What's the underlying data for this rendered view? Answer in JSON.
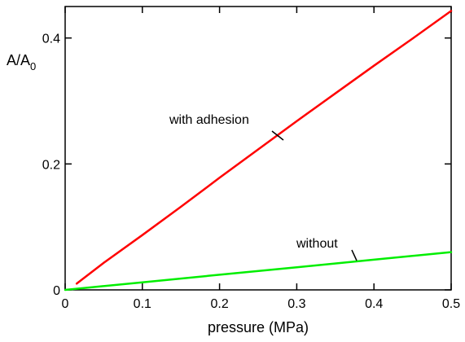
{
  "chart_data": {
    "type": "line",
    "title": "",
    "xlabel": "pressure (MPa)",
    "ylabel_main": "A/A",
    "ylabel_sub": "0",
    "xlim": [
      0,
      0.5
    ],
    "ylim": [
      0,
      0.45
    ],
    "xticks": [
      0,
      0.1,
      0.2,
      0.3,
      0.4,
      0.5
    ],
    "xtick_labels": [
      "0",
      "0.1",
      "0.2",
      "0.3",
      "0.4",
      "0.5"
    ],
    "yticks": [
      0,
      0.2,
      0.4
    ],
    "ytick_labels": [
      "0",
      "0.2",
      "0.4"
    ],
    "grid": false,
    "series": [
      {
        "name": "with adhesion",
        "color": "#ff0000",
        "x": [
          0.015,
          0.05,
          0.1,
          0.15,
          0.2,
          0.25,
          0.3,
          0.35,
          0.4,
          0.45,
          0.5
        ],
        "y": [
          0.01,
          0.043,
          0.087,
          0.132,
          0.178,
          0.223,
          0.268,
          0.312,
          0.356,
          0.399,
          0.443
        ]
      },
      {
        "name": "without",
        "color": "#00ee00",
        "x": [
          0,
          0.1,
          0.2,
          0.3,
          0.4,
          0.5
        ],
        "y": [
          0,
          0.012,
          0.024,
          0.036,
          0.048,
          0.06
        ]
      }
    ]
  }
}
